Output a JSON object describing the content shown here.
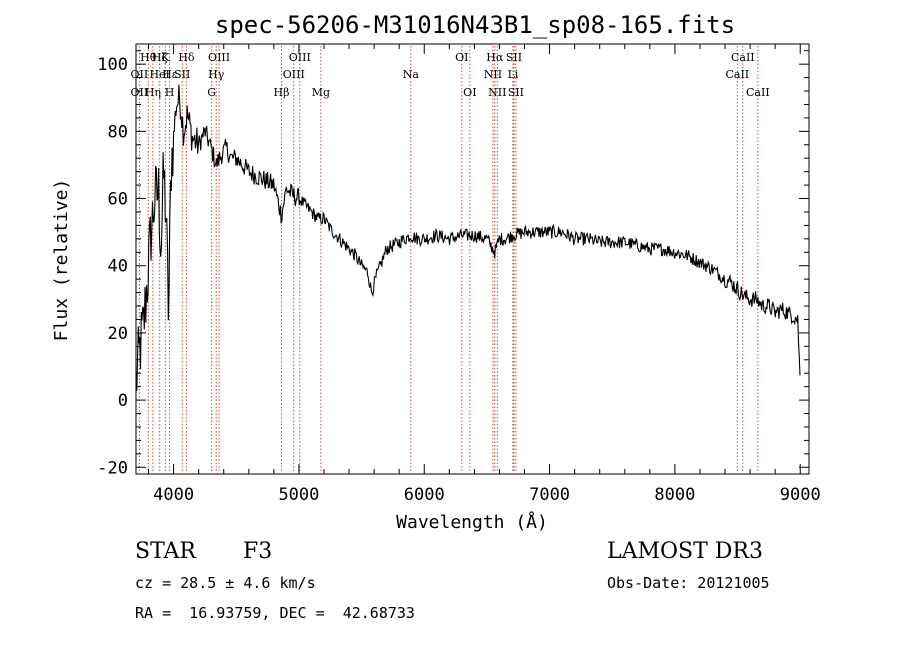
{
  "chart_data": {
    "type": "line",
    "title": "spec-56206-M31016N43B1_sp08-165.fits",
    "xlabel": "Wavelength (Å)",
    "ylabel": "Flux (relative)",
    "xlim": [
      3700,
      9070
    ],
    "ylim": [
      -22,
      106
    ],
    "xticks": [
      4000,
      5000,
      6000,
      7000,
      8000,
      9000
    ],
    "yticks": [
      -20,
      0,
      20,
      40,
      60,
      80,
      100
    ],
    "series": [
      {
        "name": "flux",
        "x": [
          3700,
          3730,
          3760,
          3790,
          3820,
          3850,
          3880,
          3900,
          3920,
          3940,
          3960,
          3980,
          4000,
          4020,
          4050,
          4080,
          4110,
          4150,
          4200,
          4250,
          4300,
          4340,
          4380,
          4420,
          4460,
          4500,
          4550,
          4600,
          4650,
          4700,
          4750,
          4800,
          4861,
          4900,
          4950,
          5000,
          5050,
          5100,
          5150,
          5200,
          5250,
          5300,
          5350,
          5400,
          5450,
          5500,
          5550,
          5580,
          5620,
          5700,
          5800,
          5890,
          5950,
          6000,
          6100,
          6200,
          6300,
          6400,
          6500,
          6563,
          6600,
          6650,
          6700,
          6800,
          6900,
          7000,
          7100,
          7200,
          7300,
          7400,
          7500,
          7600,
          7700,
          7800,
          7900,
          8000,
          8100,
          8200,
          8300,
          8400,
          8450,
          8500,
          8550,
          8600,
          8650,
          8700,
          8750,
          8800,
          8850,
          8900,
          8950,
          8980,
          9000
        ],
        "values": [
          5,
          15,
          22,
          35,
          50,
          60,
          62,
          45,
          68,
          55,
          25,
          70,
          78,
          88,
          90,
          80,
          85,
          78,
          76,
          80,
          75,
          70,
          73,
          75,
          72,
          72,
          70,
          68,
          67,
          66,
          65,
          64,
          55,
          63,
          61,
          60,
          58,
          56,
          54,
          54,
          51,
          49,
          47,
          45,
          43,
          40,
          38,
          32,
          37,
          45,
          47,
          49,
          48,
          48,
          49,
          48,
          49,
          49,
          48,
          44,
          48,
          48,
          49,
          50,
          50,
          50,
          50,
          48,
          48,
          47,
          47,
          47,
          46,
          45,
          45,
          44,
          43,
          41,
          39,
          36,
          35,
          33,
          31,
          30,
          30,
          28,
          28,
          26,
          27,
          26,
          25,
          24,
          5
        ]
      }
    ],
    "lines": [
      {
        "name": "OII",
        "wave": 3727,
        "row": 1
      },
      {
        "name": "OII",
        "wave": 3727,
        "row": 2
      },
      {
        "name": "Hθ",
        "wave": 3798,
        "row": 0
      },
      {
        "name": "Hη",
        "wave": 3835,
        "row": 2
      },
      {
        "name": "Hζ",
        "wave": 3889,
        "row": 0
      },
      {
        "name": "HeI",
        "wave": 3889,
        "row": 1
      },
      {
        "name": "K",
        "wave": 3934,
        "row": 0
      },
      {
        "name": "H",
        "wave": 3968,
        "row": 2
      },
      {
        "name": "Hε",
        "wave": 3970,
        "row": 1
      },
      {
        "name": "SII",
        "wave": 4069,
        "row": 1
      },
      {
        "name": "Hδ",
        "wave": 4102,
        "row": 0
      },
      {
        "name": "G",
        "wave": 4304,
        "row": 2
      },
      {
        "name": "Hγ",
        "wave": 4340,
        "row": 1
      },
      {
        "name": "OIII",
        "wave": 4363,
        "row": 0
      },
      {
        "name": "Hβ",
        "wave": 4861,
        "row": 2
      },
      {
        "name": "OIII",
        "wave": 4959,
        "row": 1
      },
      {
        "name": "OIII",
        "wave": 5007,
        "row": 0
      },
      {
        "name": "Mg",
        "wave": 5175,
        "row": 2
      },
      {
        "name": "Na",
        "wave": 5893,
        "row": 1
      },
      {
        "name": "OI",
        "wave": 6300,
        "row": 0
      },
      {
        "name": "OI",
        "wave": 6364,
        "row": 2
      },
      {
        "name": "NII",
        "wave": 6548,
        "row": 1
      },
      {
        "name": "Hα",
        "wave": 6563,
        "row": 0
      },
      {
        "name": "NII",
        "wave": 6583,
        "row": 2
      },
      {
        "name": "Li",
        "wave": 6708,
        "row": 1
      },
      {
        "name": "SII",
        "wave": 6716,
        "row": 0
      },
      {
        "name": "SII",
        "wave": 6731,
        "row": 2
      },
      {
        "name": "CaII",
        "wave": 8498,
        "row": 1
      },
      {
        "name": "CaII",
        "wave": 8542,
        "row": 0
      },
      {
        "name": "CaII",
        "wave": 8662,
        "row": 2
      }
    ]
  },
  "info": {
    "object_class": "STAR",
    "subclass": "F3",
    "survey": "LAMOST DR3",
    "cz": "cz = 28.5 ± 4.6 km/s",
    "obs_date": "Obs-Date: 20121005",
    "coords": "RA =  16.93759, DEC =  42.68733"
  }
}
